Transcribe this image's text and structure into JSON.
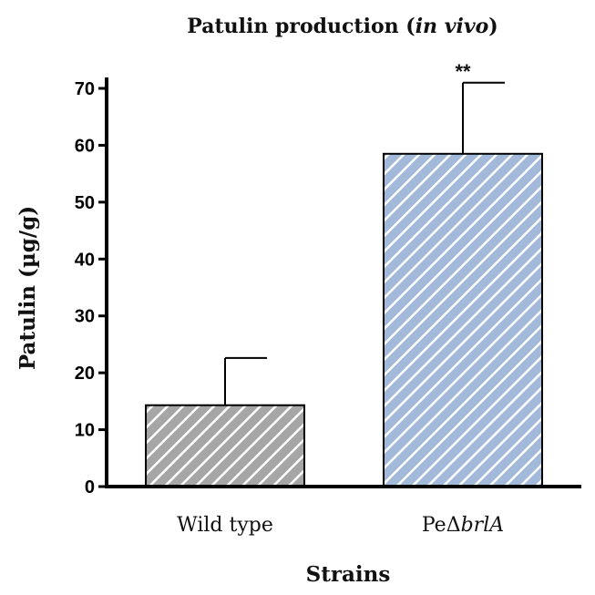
{
  "title": {
    "main": "Patulin production (",
    "italic": "in vivo",
    "close": ")"
  },
  "chart_data": {
    "type": "bar",
    "categories": [
      "Wild type",
      "PeΔbrlA"
    ],
    "category_labels": [
      {
        "plain": "Wild type",
        "italic": ""
      },
      {
        "plain": "PeΔ",
        "italic": "brlA"
      }
    ],
    "values": [
      14.3,
      58.5
    ],
    "error_upper": [
      8.3,
      12.5
    ],
    "significance": [
      "",
      "**"
    ],
    "bar_colors": [
      "#a6a6a6",
      "#a3b9d9"
    ],
    "hatch": "diagonal-white-stripes",
    "xlabel": "Strains",
    "ylabel": "Patulin (µg/g)",
    "ylim": [
      0,
      70
    ],
    "yticks": [
      0,
      10,
      20,
      30,
      40,
      50,
      60,
      70
    ],
    "grid": false
  }
}
